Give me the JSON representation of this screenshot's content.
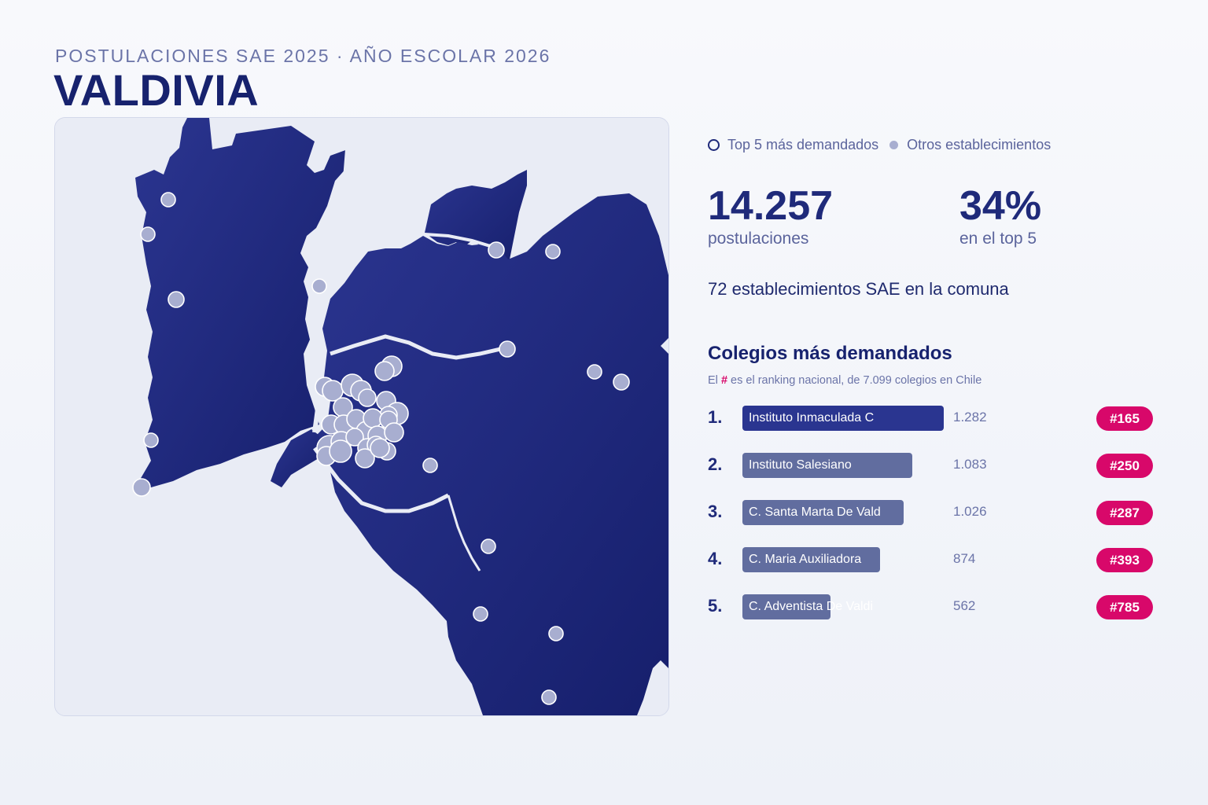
{
  "header": {
    "subtitle": "POSTULACIONES SAE 2025 · AÑO ESCOLAR 2026",
    "title": "VALDIVIA"
  },
  "legend": {
    "top5_label": "Top 5 más demandados",
    "others_label": "Otros establecimientos"
  },
  "kpis": [
    {
      "value": "14.257",
      "label": "postulaciones"
    },
    {
      "value": "34%",
      "label": "en el top 5"
    }
  ],
  "total_schools": "72 establecimientos SAE en la comuna",
  "ranking": {
    "title": "Colegios más demandados",
    "note_prefix": "El",
    "note_hash": "#",
    "note_suffix": "es el ranking nacional, de 7.099 colegios en Chile",
    "items": [
      {
        "rank": "1.",
        "name": "Instituto Inmaculada C",
        "applications": 1282,
        "applications_label": "1.282",
        "national_rank": "#165"
      },
      {
        "rank": "2.",
        "name": "Instituto Salesiano",
        "applications": 1083,
        "applications_label": "1.083",
        "national_rank": "#250"
      },
      {
        "rank": "3.",
        "name": "C. Santa Marta De Vald",
        "applications": 1026,
        "applications_label": "1.026",
        "national_rank": "#287"
      },
      {
        "rank": "4.",
        "name": "C. Maria Auxiliadora",
        "applications": 874,
        "applications_label": "874",
        "national_rank": "#393"
      },
      {
        "rank": "5.",
        "name": "C. Adventista De Valdi",
        "applications": 562,
        "applications_label": "562",
        "national_rank": "#785"
      }
    ]
  },
  "colors": {
    "land": "#1f2a7e",
    "water": "#e9ecf5",
    "dot_fill": "#a8aed0",
    "dot_stroke": "#ffffff",
    "badge": "#d8086a",
    "bar_first": "#2a3590",
    "bar_other": "#616d9f"
  }
}
